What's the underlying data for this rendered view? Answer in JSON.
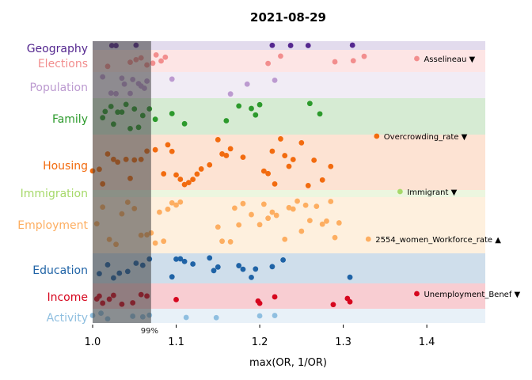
{
  "chart_data": {
    "type": "scatter",
    "title": "2021-08-29",
    "xlabel": "max(OR, 1/OR)",
    "ylabel": "",
    "xlim": [
      1.0,
      1.47
    ],
    "xticks": [
      {
        "value": 1.0,
        "label": "1.0"
      },
      {
        "value": 1.1,
        "label": "1.1"
      },
      {
        "value": 1.2,
        "label": "1.2"
      },
      {
        "value": 1.3,
        "label": "1.3"
      },
      {
        "value": 1.4,
        "label": "1.4"
      }
    ],
    "threshold": {
      "value": 1.07,
      "label": "99%"
    },
    "categories": [
      {
        "name": "Geography",
        "color": "#54278f",
        "band": "#e2dbed",
        "points": [
          1.023,
          1.028,
          1.052,
          1.215,
          1.237,
          1.258,
          1.311
        ]
      },
      {
        "name": "Elections",
        "color": "#f28e8e",
        "band": "#fde5e5",
        "points": [
          1.018,
          1.045,
          1.052,
          1.058,
          1.065,
          1.072,
          1.076,
          1.082,
          1.087,
          1.21,
          1.225,
          1.29,
          1.312,
          1.325
        ],
        "annotation": {
          "label": "Asselineau ▼",
          "x": 1.388
        }
      },
      {
        "name": "Population",
        "color": "#bc9ad0",
        "band": "#f1ecf5",
        "points": [
          1.012,
          1.022,
          1.028,
          1.035,
          1.038,
          1.045,
          1.048,
          1.055,
          1.058,
          1.062,
          1.065,
          1.095,
          1.165,
          1.185,
          1.218
        ]
      },
      {
        "name": "Family",
        "color": "#2c9a2c",
        "band": "#d6ebd3",
        "points": [
          1.012,
          1.015,
          1.022,
          1.025,
          1.03,
          1.035,
          1.04,
          1.045,
          1.05,
          1.055,
          1.06,
          1.068,
          1.075,
          1.095,
          1.11,
          1.16,
          1.175,
          1.19,
          1.195,
          1.2,
          1.26,
          1.272
        ]
      },
      {
        "name": "Housing",
        "color": "#f26b0f",
        "band": "#fde3d3",
        "points": [
          1.0,
          1.008,
          1.012,
          1.018,
          1.025,
          1.03,
          1.04,
          1.045,
          1.05,
          1.058,
          1.065,
          1.075,
          1.085,
          1.09,
          1.095,
          1.1,
          1.105,
          1.11,
          1.115,
          1.12,
          1.125,
          1.13,
          1.14,
          1.15,
          1.155,
          1.16,
          1.165,
          1.18,
          1.205,
          1.21,
          1.215,
          1.218,
          1.225,
          1.23,
          1.235,
          1.24,
          1.25,
          1.258,
          1.265,
          1.275,
          1.285
        ],
        "annotation": {
          "label": "Overcrowding_rate ▼",
          "x": 1.34
        }
      },
      {
        "name": "Immigration",
        "color": "#a6d96a",
        "band": "#ecf6df",
        "points": [],
        "annotation": {
          "label": "Immigrant ▼",
          "x": 1.368
        }
      },
      {
        "name": "Employment",
        "color": "#fdae61",
        "band": "#fef0de",
        "points": [
          1.005,
          1.012,
          1.02,
          1.028,
          1.035,
          1.042,
          1.05,
          1.058,
          1.065,
          1.07,
          1.075,
          1.08,
          1.085,
          1.09,
          1.095,
          1.1,
          1.105,
          1.15,
          1.155,
          1.165,
          1.17,
          1.175,
          1.18,
          1.19,
          1.2,
          1.205,
          1.21,
          1.215,
          1.22,
          1.23,
          1.235,
          1.24,
          1.245,
          1.25,
          1.255,
          1.26,
          1.268,
          1.275,
          1.28,
          1.285,
          1.29,
          1.295
        ],
        "annotation": {
          "label": "2554_women_Workforce_rate ▲",
          "x": 1.33
        }
      },
      {
        "name": "Education",
        "color": "#1f63a6",
        "band": "#cfdeeb",
        "points": [
          1.008,
          1.018,
          1.025,
          1.032,
          1.042,
          1.052,
          1.06,
          1.068,
          1.095,
          1.1,
          1.105,
          1.11,
          1.12,
          1.14,
          1.145,
          1.15,
          1.175,
          1.18,
          1.19,
          1.195,
          1.215,
          1.228,
          1.308
        ]
      },
      {
        "name": "Income",
        "color": "#d6061e",
        "band": "#f8cdd2",
        "points": [
          1.005,
          1.008,
          1.012,
          1.02,
          1.025,
          1.035,
          1.048,
          1.058,
          1.065,
          1.1,
          1.198,
          1.2,
          1.218,
          1.288,
          1.305,
          1.308
        ],
        "annotation": {
          "label": "Unemployment_Benef ▼",
          "x": 1.388
        }
      },
      {
        "name": "Activity",
        "color": "#8fbfe0",
        "band": "#e8f1f8",
        "points": [
          1.0,
          1.01,
          1.018,
          1.048,
          1.06,
          1.068,
          1.112,
          1.148,
          1.2,
          1.218
        ]
      }
    ]
  }
}
